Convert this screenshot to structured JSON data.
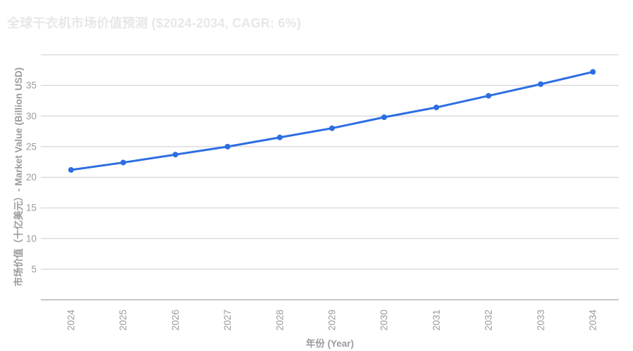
{
  "chart_data": {
    "type": "line",
    "title": "全球干衣机市场价值预测 ($2024-2034, CAGR: 6%)",
    "xlabel": "年份 (Year)",
    "ylabel": "市场价值（十亿美元）- Market Value (Billion USD)",
    "categories": [
      "2024",
      "2025",
      "2026",
      "2027",
      "2028",
      "2029",
      "2030",
      "2031",
      "2032",
      "2033",
      "2034"
    ],
    "series": [
      {
        "name": "Market Value (Billion USD)",
        "values": [
          21.2,
          22.4,
          23.7,
          25.0,
          26.5,
          28.0,
          29.8,
          31.4,
          33.3,
          35.2,
          37.2
        ]
      }
    ],
    "ylim": [
      0,
      40
    ],
    "yticks": [
      5,
      10,
      15,
      20,
      25,
      30,
      35
    ],
    "grid": true,
    "legend": "none",
    "marker": "circle",
    "colors": {
      "line": "#2c6ee2",
      "marker": "#2c6ee2",
      "grid": "#cccccc",
      "axis_line": "#b5b5b5",
      "tick_label": "#9b9b9b",
      "axis_title": "#9b9b9b",
      "title": "#e7e7e7",
      "background": "#ffffff"
    }
  }
}
